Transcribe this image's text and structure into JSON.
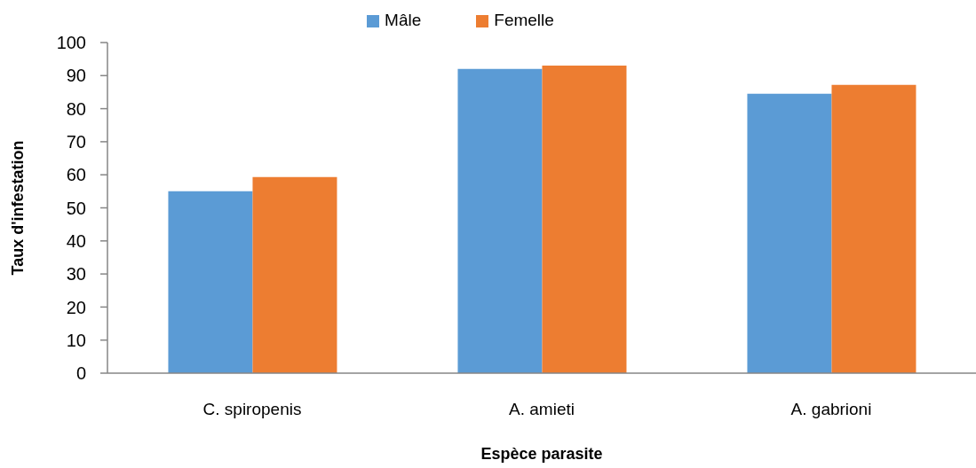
{
  "chart_data": {
    "type": "bar",
    "xlabel": "Espèce parasite",
    "ylabel": "Taux d'infestation",
    "categories": [
      "C. spiropenis",
      "A. amieti",
      "A. gabrioni"
    ],
    "series": [
      {
        "name": "Mâle",
        "color": "#5b9bd5",
        "values": [
          55,
          92,
          84.5
        ]
      },
      {
        "name": "Femelle",
        "color": "#ed7d31",
        "values": [
          59.3,
          93,
          87.2
        ]
      }
    ],
    "ylim": [
      0,
      100
    ],
    "yticks": [
      0,
      10,
      20,
      30,
      40,
      50,
      60,
      70,
      80,
      90,
      100
    ],
    "legend": "top"
  }
}
